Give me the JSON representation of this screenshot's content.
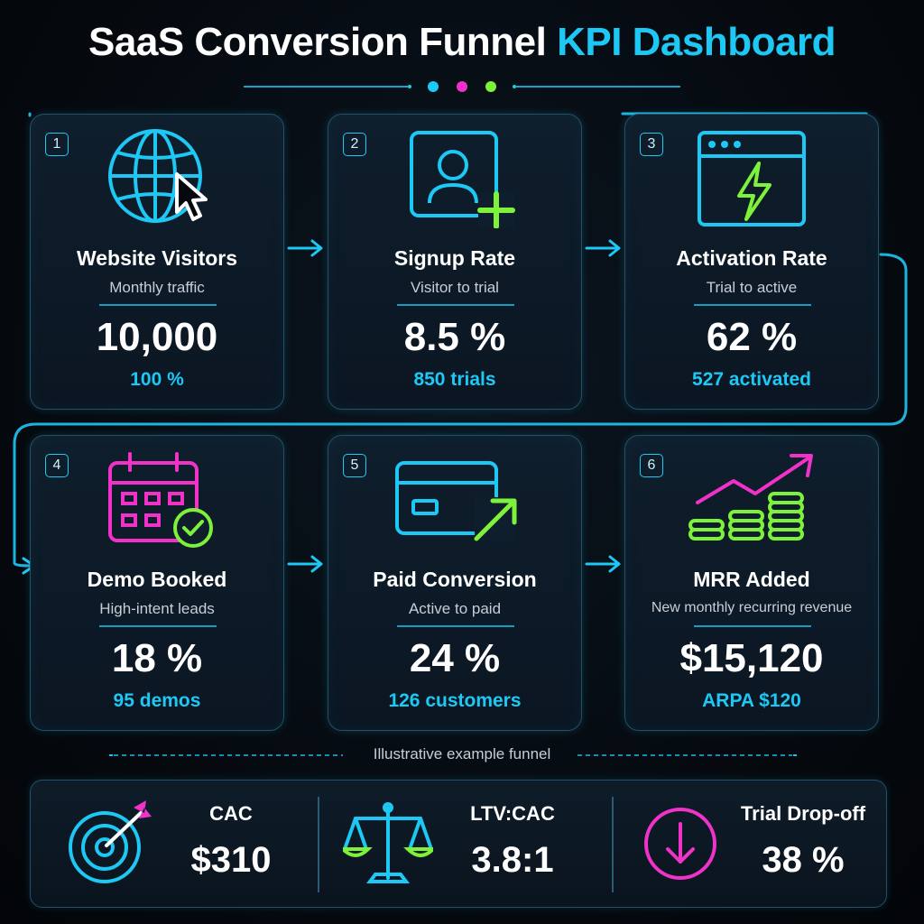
{
  "header": {
    "title_main": "SaaS Conversion Funnel ",
    "title_accent": "KPI Dashboard"
  },
  "colors": {
    "cyan": "#1ec8f5",
    "magenta": "#f032c8",
    "green": "#7ef23a",
    "background": "#05090e"
  },
  "funnel": [
    {
      "step": "1",
      "icon": "globe-cursor-icon",
      "title": "Website Visitors",
      "subtitle": "Monthly traffic",
      "value": "10,000",
      "note": "100 %"
    },
    {
      "step": "2",
      "icon": "user-plus-icon",
      "title": "Signup Rate",
      "subtitle": "Visitor to trial",
      "value": "8.5 %",
      "note": "850 trials"
    },
    {
      "step": "3",
      "icon": "browser-lightning-icon",
      "title": "Activation Rate",
      "subtitle": "Trial to active",
      "value": "62 %",
      "note": "527 activated"
    },
    {
      "step": "4",
      "icon": "calendar-check-icon",
      "title": "Demo Booked",
      "subtitle": "High-intent leads",
      "value": "18 %",
      "note": "95 demos"
    },
    {
      "step": "5",
      "icon": "credit-card-arrow-icon",
      "title": "Paid Conversion",
      "subtitle": "Active to paid",
      "value": "24 %",
      "note": "126 customers"
    },
    {
      "step": "6",
      "icon": "coins-trend-icon",
      "title": "MRR Added",
      "subtitle": "New monthly recurring revenue",
      "value": "$15,120",
      "note": "ARPA $120"
    }
  ],
  "footnote": "Illustrative example funnel",
  "kpis": [
    {
      "icon": "target-icon",
      "label": "CAC",
      "value": "$310"
    },
    {
      "icon": "balance-scale-icon",
      "label": "LTV:CAC",
      "value": "3.8:1"
    },
    {
      "icon": "down-arrow-circle-icon",
      "label": "Trial Drop-off",
      "value": "38 %"
    }
  ]
}
